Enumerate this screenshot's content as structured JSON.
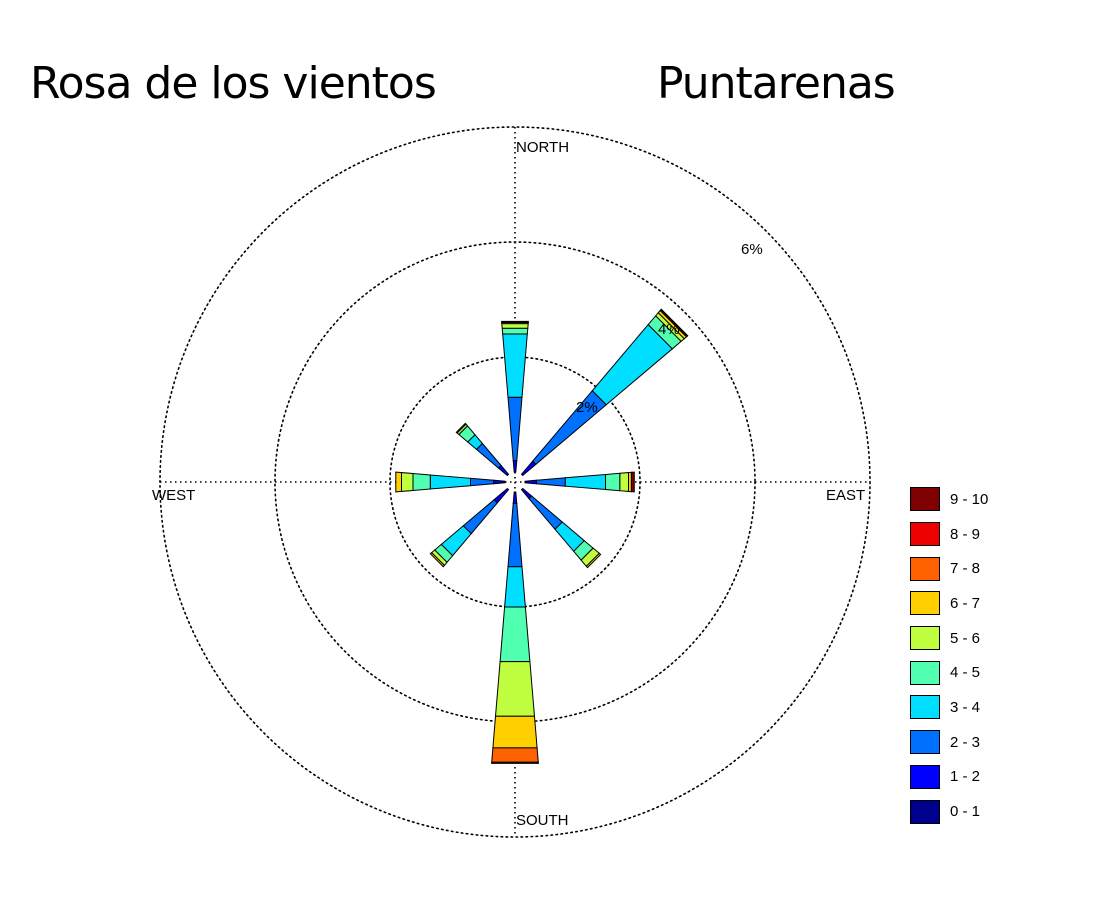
{
  "title_left": "Rosa de los vientos",
  "title_right": "Puntarenas",
  "chart_data": {
    "type": "wind-rose",
    "directions": [
      "NORTH",
      "EAST",
      "SOUTH",
      "WEST"
    ],
    "ring_values": [
      2,
      4,
      6
    ],
    "ring_labels": [
      "2%",
      "4%",
      "6%"
    ],
    "grid": true,
    "legend_position": "right",
    "bins": [
      {
        "label": "0 - 1",
        "color": "#00008f"
      },
      {
        "label": "1 - 2",
        "color": "#0000ff"
      },
      {
        "label": "2 - 3",
        "color": "#0070ff"
      },
      {
        "label": "3 - 4",
        "color": "#00dfff"
      },
      {
        "label": "4 - 5",
        "color": "#50ffaf"
      },
      {
        "label": "5 - 6",
        "color": "#bfff40"
      },
      {
        "label": "6 - 7",
        "color": "#ffcf00"
      },
      {
        "label": "7 - 8",
        "color": "#ff6000"
      },
      {
        "label": "8 - 9",
        "color": "#ef0000"
      },
      {
        "label": "9 - 10",
        "color": "#7f0000"
      }
    ],
    "sectors": [
      {
        "direction": 0,
        "name": "N",
        "cumulative": [
          0.0,
          0.2,
          1.3,
          2.4,
          2.5,
          2.58,
          2.6,
          2.6,
          2.6,
          2.62
        ]
      },
      {
        "direction": 45,
        "name": "NE",
        "cumulative": [
          0.0,
          0.3,
          1.9,
          3.4,
          3.6,
          3.67,
          3.72,
          3.74,
          3.74,
          3.75
        ]
      },
      {
        "direction": 90,
        "name": "E",
        "cumulative": [
          0.0,
          0.2,
          0.7,
          1.4,
          1.65,
          1.8,
          1.85,
          1.85,
          1.85,
          1.9
        ]
      },
      {
        "direction": 135,
        "name": "SE",
        "cumulative": [
          0.0,
          0.2,
          0.9,
          1.4,
          1.6,
          1.74,
          1.77,
          1.77,
          1.77,
          1.77
        ]
      },
      {
        "direction": 180,
        "name": "S",
        "cumulative": [
          0.0,
          0.2,
          1.3,
          2.0,
          2.95,
          3.9,
          4.45,
          4.7,
          4.7,
          4.72
        ]
      },
      {
        "direction": 225,
        "name": "SW",
        "cumulative": [
          0.0,
          0.3,
          1.0,
          1.5,
          1.65,
          1.72,
          1.75,
          1.75,
          1.75,
          1.75
        ]
      },
      {
        "direction": 270,
        "name": "W",
        "cumulative": [
          0.0,
          0.2,
          0.6,
          1.3,
          1.6,
          1.8,
          1.9,
          1.9,
          1.9,
          1.9
        ]
      },
      {
        "direction": 315,
        "name": "NW",
        "cumulative": [
          0.0,
          0.2,
          0.7,
          0.9,
          1.1,
          1.14,
          1.16,
          1.16,
          1.16,
          1.16
        ]
      }
    ]
  }
}
